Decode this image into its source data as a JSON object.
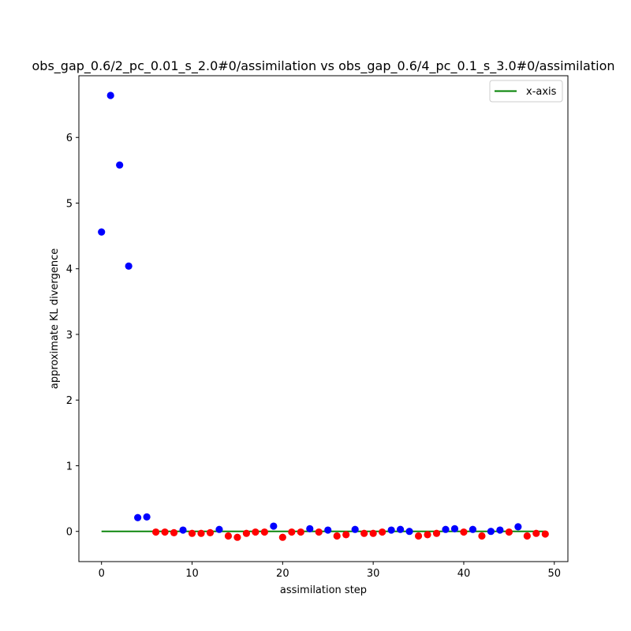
{
  "chart_data": {
    "type": "scatter",
    "title": "obs_gap_0.6/2_pc_0.01_s_2.0#0/assimilation vs obs_gap_0.6/4_pc_0.1_s_3.0#0/assimilation",
    "xlabel": "assimilation step",
    "ylabel": "approximate KL divergence",
    "xlim": [
      -2.5,
      51.5
    ],
    "ylim": [
      -0.46,
      6.94
    ],
    "xticks": [
      0,
      10,
      20,
      30,
      40,
      50
    ],
    "yticks": [
      0,
      1,
      2,
      3,
      4,
      5,
      6
    ],
    "legend": {
      "position": "top-right",
      "entries": [
        {
          "label": "x-axis",
          "color": "#008000",
          "kind": "line"
        }
      ]
    },
    "reference_line": {
      "label": "x-axis",
      "y": 0,
      "x_range": [
        0,
        49
      ],
      "color": "#008000"
    },
    "colors": {
      "positive": "#0000ff",
      "negative": "#ff0000"
    },
    "points": [
      {
        "x": 0,
        "y": 4.56
      },
      {
        "x": 1,
        "y": 6.64
      },
      {
        "x": 2,
        "y": 5.58
      },
      {
        "x": 3,
        "y": 4.04
      },
      {
        "x": 4,
        "y": 0.21
      },
      {
        "x": 5,
        "y": 0.22
      },
      {
        "x": 6,
        "y": -0.01
      },
      {
        "x": 7,
        "y": -0.01
      },
      {
        "x": 8,
        "y": -0.02
      },
      {
        "x": 9,
        "y": 0.02
      },
      {
        "x": 10,
        "y": -0.03
      },
      {
        "x": 11,
        "y": -0.03
      },
      {
        "x": 12,
        "y": -0.02
      },
      {
        "x": 13,
        "y": 0.03
      },
      {
        "x": 14,
        "y": -0.07
      },
      {
        "x": 15,
        "y": -0.09
      },
      {
        "x": 16,
        "y": -0.03
      },
      {
        "x": 17,
        "y": -0.01
      },
      {
        "x": 18,
        "y": -0.01
      },
      {
        "x": 19,
        "y": 0.08
      },
      {
        "x": 20,
        "y": -0.09
      },
      {
        "x": 21,
        "y": -0.01
      },
      {
        "x": 22,
        "y": -0.01
      },
      {
        "x": 23,
        "y": 0.04
      },
      {
        "x": 24,
        "y": -0.01
      },
      {
        "x": 25,
        "y": 0.02
      },
      {
        "x": 26,
        "y": -0.07
      },
      {
        "x": 27,
        "y": -0.05
      },
      {
        "x": 28,
        "y": 0.03
      },
      {
        "x": 29,
        "y": -0.03
      },
      {
        "x": 30,
        "y": -0.03
      },
      {
        "x": 31,
        "y": -0.01
      },
      {
        "x": 32,
        "y": 0.02
      },
      {
        "x": 33,
        "y": 0.03
      },
      {
        "x": 34,
        "y": 0.0
      },
      {
        "x": 35,
        "y": -0.07
      },
      {
        "x": 36,
        "y": -0.05
      },
      {
        "x": 37,
        "y": -0.03
      },
      {
        "x": 38,
        "y": 0.03
      },
      {
        "x": 39,
        "y": 0.04
      },
      {
        "x": 40,
        "y": -0.01
      },
      {
        "x": 41,
        "y": 0.03
      },
      {
        "x": 42,
        "y": -0.07
      },
      {
        "x": 43,
        "y": 0.0
      },
      {
        "x": 44,
        "y": 0.02
      },
      {
        "x": 45,
        "y": -0.01
      },
      {
        "x": 46,
        "y": 0.07
      },
      {
        "x": 47,
        "y": -0.07
      },
      {
        "x": 48,
        "y": -0.03
      },
      {
        "x": 49,
        "y": -0.04
      }
    ]
  }
}
